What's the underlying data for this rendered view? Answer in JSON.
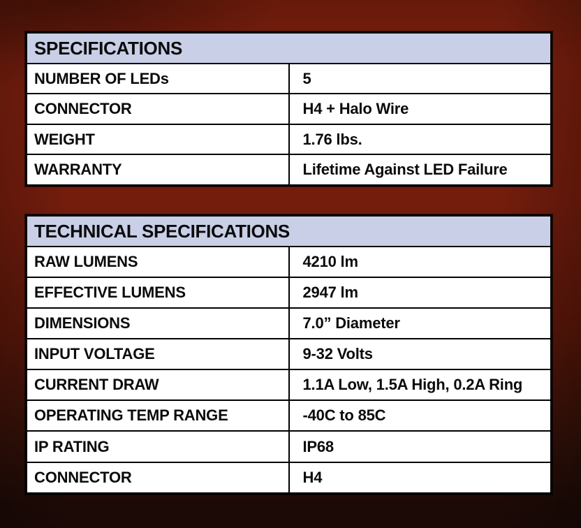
{
  "colors": {
    "background_top": "#7b1f0e",
    "background_bottom": "#1a0906",
    "header_bg": "#c9cfe7",
    "cell_bg": "#ffffff",
    "border": "#000000",
    "text": "#0b0b0b"
  },
  "tables": [
    {
      "title": "SPECIFICATIONS",
      "rows": [
        {
          "label": "NUMBER OF LEDs",
          "value": "5"
        },
        {
          "label": "CONNECTOR",
          "value": "H4 + Halo Wire"
        },
        {
          "label": "WEIGHT",
          "value": "1.76 lbs."
        },
        {
          "label": "WARRANTY",
          "value": "Lifetime Against LED Failure"
        }
      ]
    },
    {
      "title": "TECHNICAL SPECIFICATIONS",
      "rows": [
        {
          "label": "RAW LUMENS",
          "value": "4210 lm"
        },
        {
          "label": "EFFECTIVE LUMENS",
          "value": "2947 lm"
        },
        {
          "label": "DIMENSIONS",
          "value": "7.0” Diameter"
        },
        {
          "label": "INPUT VOLTAGE",
          "value": "9-32 Volts"
        },
        {
          "label": "CURRENT DRAW",
          "value": "1.1A Low, 1.5A High, 0.2A Ring"
        },
        {
          "label": "OPERATING TEMP RANGE",
          "value": "-40C to 85C"
        },
        {
          "label": "IP RATING",
          "value": "IP68"
        },
        {
          "label": "CONNECTOR",
          "value": "H4"
        }
      ]
    }
  ]
}
